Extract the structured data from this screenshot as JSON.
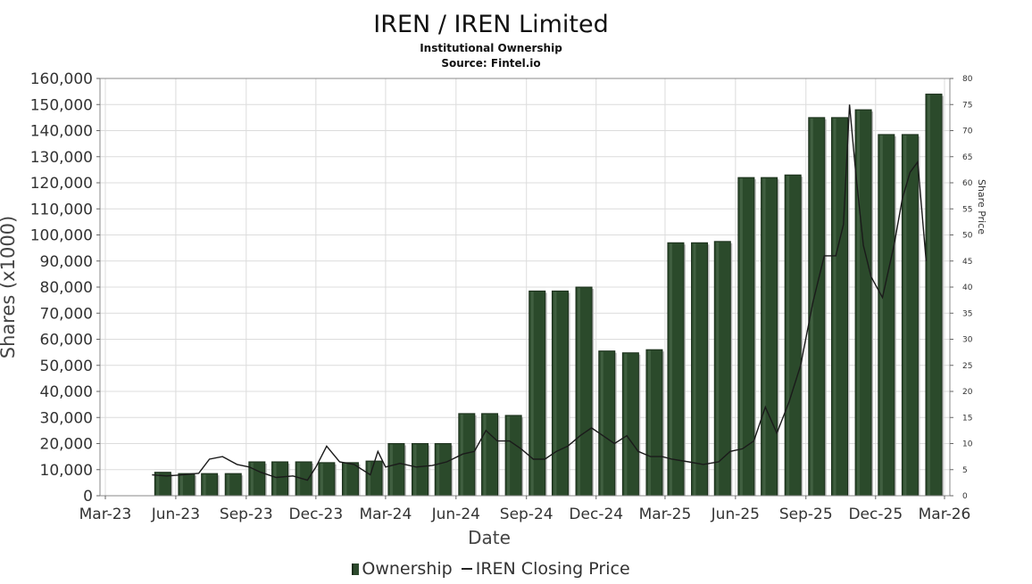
{
  "header": {
    "title": "IREN / IREN Limited",
    "subtitle": "Institutional Ownership",
    "source": "Source: Fintel.io"
  },
  "legend": {
    "ownership": "Ownership",
    "price": "IREN Closing Price"
  },
  "colors": {
    "bar_fill": "#2b4a2b",
    "bar_edge": "#1b2f1b",
    "line": "#1a1a1a",
    "grid": "#dcdcdc"
  },
  "chart_data": {
    "type": "bar",
    "title": "IREN / IREN Limited",
    "subtitle": "Institutional Ownership",
    "xlabel": "Date",
    "ylabel": "Shares (x1000)",
    "y2label": "Share Price",
    "ylim": [
      0,
      160000
    ],
    "y2lim": [
      0,
      80
    ],
    "grid": true,
    "legend_position": "bottom",
    "x_ticks": [
      "Mar-23",
      "Jun-23",
      "Sep-23",
      "Dec-23",
      "Mar-24",
      "Jun-24",
      "Sep-24",
      "Dec-24",
      "Mar-25",
      "Jun-25",
      "Sep-25",
      "Dec-25",
      "Mar-26"
    ],
    "y_ticks": [
      0,
      10000,
      20000,
      30000,
      40000,
      50000,
      60000,
      70000,
      80000,
      90000,
      100000,
      110000,
      120000,
      130000,
      140000,
      150000,
      160000
    ],
    "y_tick_labels": [
      "0",
      "10,000",
      "20,000",
      "30,000",
      "40,000",
      "50,000",
      "60,000",
      "70,000",
      "80,000",
      "90,000",
      "100,000",
      "110,000",
      "120,000",
      "130,000",
      "140,000",
      "150,000",
      "160,000"
    ],
    "y2_ticks": [
      0,
      5,
      10,
      15,
      20,
      25,
      30,
      35,
      40,
      45,
      50,
      55,
      60,
      65,
      70,
      75,
      80
    ],
    "series": [
      {
        "name": "Ownership",
        "type": "bar",
        "x": [
          "2023-05-15",
          "2023-06-15",
          "2023-07-15",
          "2023-08-15",
          "2023-09-15",
          "2023-10-15",
          "2023-11-15",
          "2023-12-15",
          "2024-01-15",
          "2024-02-15",
          "2024-03-15",
          "2024-04-15",
          "2024-05-15",
          "2024-06-15",
          "2024-07-15",
          "2024-08-15",
          "2024-09-15",
          "2024-10-15",
          "2024-11-15",
          "2024-12-15",
          "2025-01-15",
          "2025-02-15",
          "2025-03-15",
          "2025-04-15",
          "2025-05-15",
          "2025-06-15",
          "2025-07-15",
          "2025-08-15",
          "2025-09-15",
          "2025-10-15",
          "2025-11-15",
          "2025-12-15",
          "2026-01-15",
          "2026-02-15"
        ],
        "values": [
          9000,
          8500,
          8500,
          8500,
          13000,
          13000,
          13000,
          12700,
          12700,
          13300,
          20000,
          20000,
          20000,
          31500,
          31500,
          30800,
          78500,
          78500,
          80000,
          55500,
          54800,
          56000,
          97000,
          97000,
          97500,
          122000,
          122000,
          123000,
          145000,
          145000,
          148000,
          138500,
          138500,
          154000
        ]
      },
      {
        "name": "IREN Closing Price",
        "type": "line",
        "axis": "right",
        "x": [
          "2023-05-01",
          "2023-05-20",
          "2023-06-10",
          "2023-07-01",
          "2023-07-15",
          "2023-08-01",
          "2023-08-20",
          "2023-09-05",
          "2023-09-20",
          "2023-10-10",
          "2023-11-01",
          "2023-11-20",
          "2023-12-01",
          "2023-12-15",
          "2024-01-01",
          "2024-01-20",
          "2024-02-10",
          "2024-02-20",
          "2024-03-01",
          "2024-03-20",
          "2024-04-10",
          "2024-05-01",
          "2024-05-20",
          "2024-06-10",
          "2024-06-25",
          "2024-07-10",
          "2024-07-25",
          "2024-08-10",
          "2024-08-25",
          "2024-09-10",
          "2024-09-25",
          "2024-10-10",
          "2024-10-25",
          "2024-11-10",
          "2024-11-25",
          "2024-12-10",
          "2024-12-25",
          "2025-01-10",
          "2025-01-25",
          "2025-02-10",
          "2025-02-25",
          "2025-03-10",
          "2025-04-01",
          "2025-04-20",
          "2025-05-10",
          "2025-05-25",
          "2025-06-10",
          "2025-06-25",
          "2025-07-10",
          "2025-07-25",
          "2025-08-10",
          "2025-08-25",
          "2025-09-10",
          "2025-09-25",
          "2025-10-10",
          "2025-10-20",
          "2025-10-28",
          "2025-11-05",
          "2025-11-15",
          "2025-11-25",
          "2025-12-10",
          "2025-12-25",
          "2026-01-05",
          "2026-01-15",
          "2026-01-25",
          "2026-02-05"
        ],
        "values": [
          4,
          3.8,
          4,
          4.3,
          7,
          7.5,
          6,
          5.5,
          4.5,
          3.5,
          3.8,
          3,
          5.5,
          9.5,
          6.5,
          6,
          4,
          8.5,
          5.5,
          6.2,
          5.5,
          5.8,
          6.5,
          8,
          8.5,
          12.5,
          10.5,
          10.5,
          9,
          7,
          7,
          8.5,
          9.5,
          11.5,
          13,
          11.5,
          10,
          11.5,
          8.5,
          7.5,
          7.5,
          7,
          6.5,
          6,
          6.5,
          8.5,
          9,
          10.5,
          17,
          12,
          18,
          25,
          37,
          46,
          46,
          52,
          75,
          62,
          48,
          42,
          38,
          48,
          57,
          62,
          64,
          45
        ]
      }
    ]
  }
}
